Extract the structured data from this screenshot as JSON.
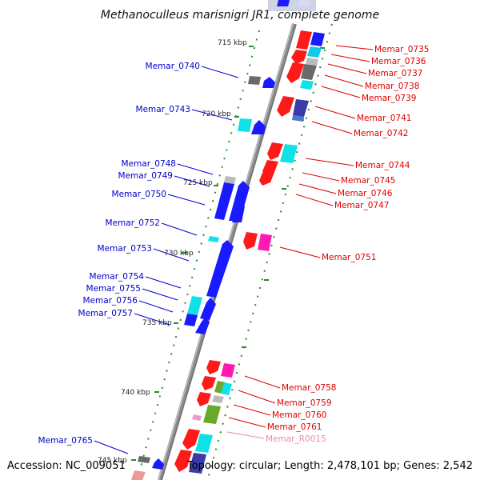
{
  "title": "Methanoculleus marisnigri JR1, complete genome",
  "footer": {
    "accession": "Accession: NC_009051",
    "topology": "Topology: circular; Length: 2,478,101 bp; Genes: 2,542"
  },
  "colors": {
    "backbone": "#8c8c8c",
    "forward_label": "#0000cc",
    "reverse_label": "#dd0000",
    "rna_label": "#ee88bb",
    "tick": "#2a8a2a"
  },
  "ticks": [
    "715 kbp",
    "720 kbp",
    "725 kbp",
    "730 kbp",
    "735 kbp",
    "740 kbp",
    "745 kbp"
  ],
  "left_labels": [
    "Memar_0740",
    "Memar_0743",
    "Memar_0748",
    "Memar_0749",
    "Memar_0750",
    "Memar_0752",
    "Memar_0753",
    "Memar_0754",
    "Memar_0755",
    "Memar_0756",
    "Memar_0757",
    "Memar_0765"
  ],
  "right_labels": [
    "Memar_0735",
    "Memar_0736",
    "Memar_0737",
    "Memar_0738",
    "Memar_0739",
    "Memar_0741",
    "Memar_0742",
    "Memar_0744",
    "Memar_0745",
    "Memar_0746",
    "Memar_0747",
    "Memar_0751",
    "Memar_0758",
    "Memar_0759",
    "Memar_0760",
    "Memar_0761",
    "Memar_R0015"
  ]
}
